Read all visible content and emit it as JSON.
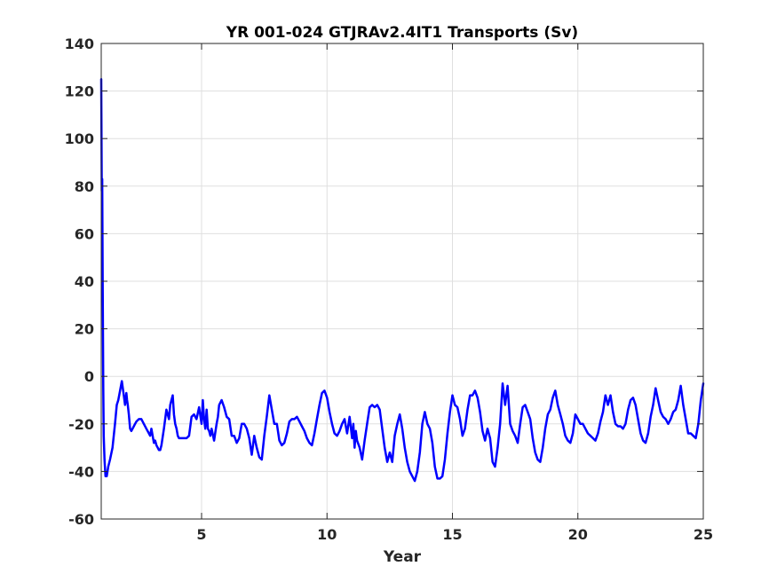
{
  "chart_data": {
    "type": "line",
    "title": "YR 001-024 GTJRAv2.4IT1 Transports (Sv)",
    "xlabel": "Year",
    "ylabel": "",
    "xlim": [
      1,
      25
    ],
    "ylim": [
      -60,
      140
    ],
    "xticks": [
      5,
      10,
      15,
      20,
      25
    ],
    "yticks": [
      -60,
      -40,
      -20,
      0,
      20,
      40,
      60,
      80,
      100,
      120,
      140
    ],
    "xtick_labels": [
      "5",
      "10",
      "15",
      "20",
      "25"
    ],
    "ytick_labels": [
      "-60",
      "-40",
      "-20",
      "0",
      "20",
      "40",
      "60",
      "80",
      "100",
      "120",
      "140"
    ],
    "grid": true,
    "series": [
      {
        "color": "#0000ff",
        "x": [
          1.0,
          1.02,
          1.04,
          1.06,
          1.08,
          1.1,
          1.13,
          1.17,
          1.22,
          1.28,
          1.35,
          1.45,
          1.55,
          1.62,
          1.68,
          1.75,
          1.82,
          1.9,
          1.95,
          2.0,
          2.03,
          2.06,
          2.1,
          2.15,
          2.2,
          2.25,
          2.3,
          2.35,
          2.4,
          2.5,
          2.6,
          2.7,
          2.8,
          2.9,
          2.95,
          3.0,
          3.05,
          3.1,
          3.15,
          3.2,
          3.25,
          3.3,
          3.35,
          3.4,
          3.5,
          3.6,
          3.7,
          3.75,
          3.8,
          3.85,
          3.9,
          3.95,
          4.0,
          4.05,
          4.1,
          4.2,
          4.3,
          4.4,
          4.5,
          4.6,
          4.7,
          4.8,
          4.9,
          5.0,
          5.05,
          5.1,
          5.15,
          5.2,
          5.25,
          5.3,
          5.35,
          5.4,
          5.5,
          5.6,
          5.65,
          5.7,
          5.8,
          5.9,
          6.0,
          6.1,
          6.2,
          6.3,
          6.4,
          6.5,
          6.6,
          6.7,
          6.8,
          6.9,
          7.0,
          7.1,
          7.2,
          7.3,
          7.4,
          7.5,
          7.6,
          7.7,
          7.8,
          7.9,
          8.0,
          8.1,
          8.2,
          8.3,
          8.4,
          8.5,
          8.6,
          8.7,
          8.8,
          8.9,
          9.0,
          9.1,
          9.2,
          9.3,
          9.4,
          9.5,
          9.6,
          9.7,
          9.8,
          9.9,
          10.0,
          10.1,
          10.2,
          10.3,
          10.4,
          10.5,
          10.6,
          10.7,
          10.8,
          10.9,
          11.0,
          11.05,
          11.1,
          11.15,
          11.2,
          11.3,
          11.4,
          11.5,
          11.6,
          11.7,
          11.8,
          11.9,
          12.0,
          12.1,
          12.2,
          12.3,
          12.4,
          12.5,
          12.6,
          12.7,
          12.8,
          12.9,
          13.0,
          13.1,
          13.2,
          13.3,
          13.4,
          13.5,
          13.6,
          13.7,
          13.8,
          13.9,
          14.0,
          14.1,
          14.2,
          14.3,
          14.4,
          14.5,
          14.6,
          14.7,
          14.8,
          14.9,
          15.0,
          15.1,
          15.2,
          15.3,
          15.4,
          15.5,
          15.6,
          15.7,
          15.8,
          15.9,
          16.0,
          16.1,
          16.2,
          16.3,
          16.4,
          16.5,
          16.6,
          16.7,
          16.8,
          16.9,
          17.0,
          17.1,
          17.2,
          17.3,
          17.4,
          17.5,
          17.6,
          17.7,
          17.8,
          17.9,
          18.0,
          18.1,
          18.2,
          18.3,
          18.4,
          18.5,
          18.6,
          18.7,
          18.8,
          18.9,
          19.0,
          19.1,
          19.2,
          19.3,
          19.4,
          19.5,
          19.6,
          19.7,
          19.8,
          19.9,
          20.0,
          20.1,
          20.2,
          20.3,
          20.4,
          20.5,
          20.6,
          20.7,
          20.8,
          20.9,
          21.0,
          21.1,
          21.2,
          21.3,
          21.4,
          21.5,
          21.6,
          21.7,
          21.8,
          21.9,
          22.0,
          22.1,
          22.2,
          22.3,
          22.4,
          22.5,
          22.6,
          22.7,
          22.8,
          22.9,
          23.0,
          23.1,
          23.2,
          23.3,
          23.4,
          23.5,
          23.6,
          23.7,
          23.8,
          23.9,
          24.0,
          24.1,
          24.2,
          24.3,
          24.4,
          24.5,
          24.6,
          24.7,
          24.8,
          24.9,
          25.0
        ],
        "y": [
          125,
          78,
          83,
          35,
          -5,
          -25,
          -35,
          -42,
          -42,
          -38,
          -35,
          -30,
          -20,
          -12,
          -10,
          -6,
          -2,
          -8,
          -12,
          -7,
          -10,
          -12,
          -16,
          -22,
          -23,
          -22,
          -21,
          -20,
          -19,
          -18,
          -18,
          -20,
          -22,
          -24,
          -25,
          -22,
          -25,
          -28,
          -27,
          -29,
          -30,
          -31,
          -31,
          -29,
          -22,
          -14,
          -18,
          -12,
          -10,
          -8,
          -16,
          -20,
          -22,
          -25,
          -26,
          -26,
          -26,
          -26,
          -25,
          -17,
          -16,
          -18,
          -13,
          -20,
          -10,
          -18,
          -22,
          -14,
          -22,
          -23,
          -25,
          -22,
          -27,
          -20,
          -17,
          -12,
          -10,
          -13,
          -17,
          -18,
          -25,
          -25,
          -28,
          -26,
          -20,
          -20,
          -22,
          -26,
          -33,
          -25,
          -30,
          -34,
          -35,
          -25,
          -17,
          -8,
          -14,
          -20,
          -20,
          -27,
          -29,
          -28,
          -24,
          -19,
          -18,
          -18,
          -17,
          -19,
          -21,
          -23,
          -26,
          -28,
          -29,
          -24,
          -18,
          -12,
          -7,
          -6,
          -9,
          -15,
          -20,
          -24,
          -25,
          -23,
          -20,
          -18,
          -24,
          -17,
          -26,
          -20,
          -30,
          -23,
          -27,
          -30,
          -35,
          -27,
          -20,
          -13,
          -12,
          -13,
          -12,
          -14,
          -22,
          -30,
          -36,
          -32,
          -36,
          -25,
          -20,
          -16,
          -22,
          -30,
          -36,
          -40,
          -42,
          -44,
          -40,
          -32,
          -20,
          -15,
          -20,
          -22,
          -28,
          -38,
          -43,
          -43,
          -42,
          -35,
          -24,
          -15,
          -8,
          -12,
          -13,
          -18,
          -25,
          -22,
          -14,
          -8,
          -8,
          -6,
          -9,
          -15,
          -23,
          -27,
          -22,
          -26,
          -36,
          -38,
          -30,
          -20,
          -3,
          -12,
          -4,
          -20,
          -23,
          -25,
          -28,
          -20,
          -13,
          -12,
          -15,
          -18,
          -26,
          -32,
          -35,
          -36,
          -30,
          -22,
          -16,
          -14,
          -9,
          -6,
          -12,
          -16,
          -20,
          -25,
          -27,
          -28,
          -24,
          -16,
          -18,
          -20,
          -20,
          -22,
          -24,
          -25,
          -26,
          -27,
          -24,
          -19,
          -15,
          -8,
          -12,
          -8,
          -15,
          -20,
          -21,
          -21,
          -22,
          -20,
          -14,
          -10,
          -9,
          -12,
          -18,
          -24,
          -27,
          -28,
          -24,
          -17,
          -12,
          -5,
          -10,
          -15,
          -17,
          -18,
          -20,
          -18,
          -15,
          -14,
          -10,
          -4,
          -12,
          -18,
          -24,
          -24,
          -25,
          -26,
          -20,
          -10,
          -3
        ]
      }
    ]
  }
}
